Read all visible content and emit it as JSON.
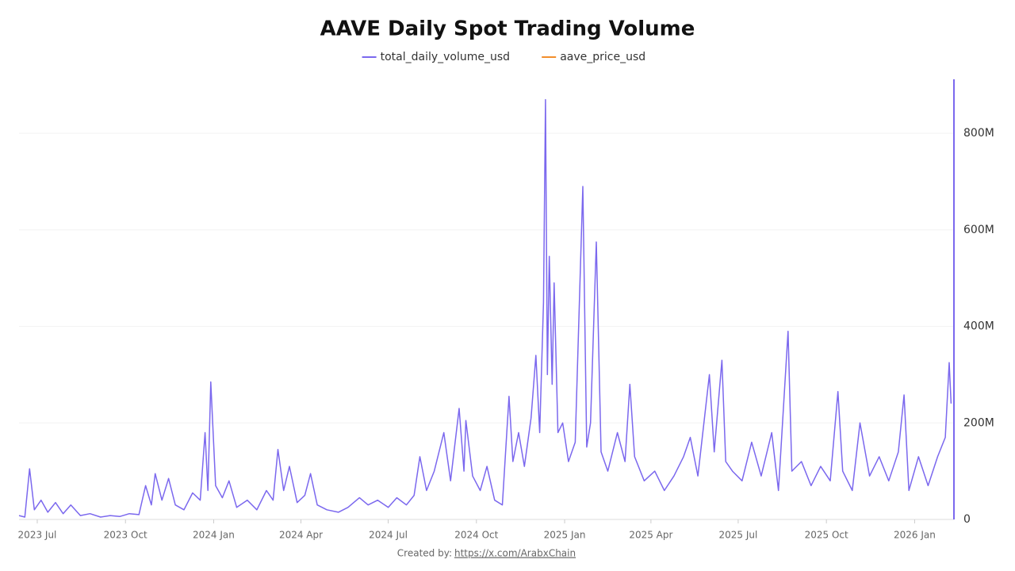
{
  "chart_data": {
    "type": "line",
    "title": "AAVE Daily Spot Trading Volume",
    "footer": "Created by:",
    "footer_link": "https://x.com/ArabxChain",
    "series": [
      {
        "name": "total_daily_volume_usd",
        "color": "#7b68ee",
        "x": [
          "2023-06-12",
          "2023-06-18",
          "2023-06-23",
          "2023-06-28",
          "2023-07-05",
          "2023-07-12",
          "2023-07-20",
          "2023-07-28",
          "2023-08-05",
          "2023-08-15",
          "2023-08-25",
          "2023-09-05",
          "2023-09-15",
          "2023-09-25",
          "2023-10-05",
          "2023-10-15",
          "2023-10-22",
          "2023-10-28",
          "2023-11-01",
          "2023-11-08",
          "2023-11-15",
          "2023-11-22",
          "2023-12-01",
          "2023-12-10",
          "2023-12-18",
          "2023-12-23",
          "2023-12-26",
          "2023-12-29",
          "2024-01-03",
          "2024-01-10",
          "2024-01-17",
          "2024-01-25",
          "2024-02-05",
          "2024-02-15",
          "2024-02-25",
          "2024-03-03",
          "2024-03-08",
          "2024-03-14",
          "2024-03-20",
          "2024-03-28",
          "2024-04-05",
          "2024-04-11",
          "2024-04-18",
          "2024-04-28",
          "2024-05-10",
          "2024-05-20",
          "2024-06-01",
          "2024-06-10",
          "2024-06-20",
          "2024-07-01",
          "2024-07-10",
          "2024-07-20",
          "2024-07-28",
          "2024-08-03",
          "2024-08-10",
          "2024-08-18",
          "2024-08-28",
          "2024-09-04",
          "2024-09-13",
          "2024-09-18",
          "2024-09-20",
          "2024-09-27",
          "2024-10-05",
          "2024-10-12",
          "2024-10-20",
          "2024-10-28",
          "2024-11-04",
          "2024-11-08",
          "2024-11-14",
          "2024-11-20",
          "2024-11-27",
          "2024-12-02",
          "2024-12-06",
          "2024-12-10",
          "2024-12-12",
          "2024-12-14",
          "2024-12-16",
          "2024-12-19",
          "2024-12-21",
          "2024-12-25",
          "2024-12-30",
          "2025-01-05",
          "2025-01-12",
          "2025-01-20",
          "2025-01-24",
          "2025-01-28",
          "2025-02-03",
          "2025-02-08",
          "2025-02-15",
          "2025-02-25",
          "2025-03-05",
          "2025-03-10",
          "2025-03-15",
          "2025-03-25",
          "2025-04-05",
          "2025-04-15",
          "2025-04-25",
          "2025-05-05",
          "2025-05-12",
          "2025-05-20",
          "2025-06-01",
          "2025-06-06",
          "2025-06-14",
          "2025-06-18",
          "2025-06-25",
          "2025-07-05",
          "2025-07-15",
          "2025-07-25",
          "2025-08-05",
          "2025-08-12",
          "2025-08-22",
          "2025-08-26",
          "2025-09-05",
          "2025-09-15",
          "2025-09-25",
          "2025-10-05",
          "2025-10-13",
          "2025-10-18",
          "2025-10-28",
          "2025-11-05",
          "2025-11-15",
          "2025-11-25",
          "2025-12-05",
          "2025-12-15",
          "2025-12-21",
          "2025-12-26",
          "2026-01-05",
          "2026-01-15",
          "2026-01-25",
          "2026-02-02",
          "2026-02-06",
          "2026-02-08"
        ],
        "values": [
          8000000,
          5000000,
          105000000,
          20000000,
          40000000,
          15000000,
          35000000,
          12000000,
          30000000,
          8000000,
          12000000,
          5000000,
          8000000,
          6000000,
          12000000,
          10000000,
          70000000,
          30000000,
          95000000,
          40000000,
          85000000,
          30000000,
          20000000,
          55000000,
          40000000,
          180000000,
          60000000,
          285000000,
          70000000,
          45000000,
          80000000,
          25000000,
          40000000,
          20000000,
          60000000,
          40000000,
          145000000,
          60000000,
          110000000,
          35000000,
          50000000,
          95000000,
          30000000,
          20000000,
          15000000,
          25000000,
          45000000,
          30000000,
          40000000,
          25000000,
          45000000,
          30000000,
          50000000,
          130000000,
          60000000,
          100000000,
          180000000,
          80000000,
          230000000,
          100000000,
          205000000,
          90000000,
          60000000,
          110000000,
          40000000,
          30000000,
          255000000,
          120000000,
          180000000,
          110000000,
          210000000,
          340000000,
          180000000,
          450000000,
          870000000,
          300000000,
          545000000,
          280000000,
          490000000,
          180000000,
          200000000,
          120000000,
          160000000,
          690000000,
          150000000,
          200000000,
          575000000,
          140000000,
          100000000,
          180000000,
          120000000,
          280000000,
          130000000,
          80000000,
          100000000,
          60000000,
          90000000,
          130000000,
          170000000,
          90000000,
          300000000,
          140000000,
          330000000,
          120000000,
          100000000,
          80000000,
          160000000,
          90000000,
          180000000,
          60000000,
          390000000,
          100000000,
          120000000,
          70000000,
          110000000,
          80000000,
          265000000,
          100000000,
          60000000,
          200000000,
          90000000,
          130000000,
          80000000,
          140000000,
          258000000,
          60000000,
          130000000,
          70000000,
          130000000,
          170000000,
          325000000,
          240000000
        ]
      },
      {
        "name": "aave_price_usd",
        "color": "#f28e2b",
        "x": [],
        "values": []
      }
    ],
    "xlim": [
      "2023-06-12",
      "2026-02-11"
    ],
    "xticks": [
      {
        "value": "2023-07-01",
        "label": "2023 Jul"
      },
      {
        "value": "2023-10-01",
        "label": "2023 Oct"
      },
      {
        "value": "2024-01-01",
        "label": "2024 Jan"
      },
      {
        "value": "2024-04-01",
        "label": "2024 Apr"
      },
      {
        "value": "2024-07-01",
        "label": "2024 Jul"
      },
      {
        "value": "2024-10-01",
        "label": "2024 Oct"
      },
      {
        "value": "2025-01-01",
        "label": "2025 Jan"
      },
      {
        "value": "2025-04-01",
        "label": "2025 Apr"
      },
      {
        "value": "2025-07-01",
        "label": "2025 Jul"
      },
      {
        "value": "2025-10-01",
        "label": "2025 Oct"
      },
      {
        "value": "2026-01-01",
        "label": "2026 Jan"
      }
    ],
    "ylim": [
      0,
      912000000
    ],
    "yticks": [
      0,
      {
        "value": 200000000,
        "label": "200M"
      },
      {
        "value": 400000000,
        "label": "400M"
      },
      {
        "value": 600000000,
        "label": "600M"
      },
      {
        "value": 800000000,
        "label": "800M"
      }
    ],
    "grid": true
  }
}
